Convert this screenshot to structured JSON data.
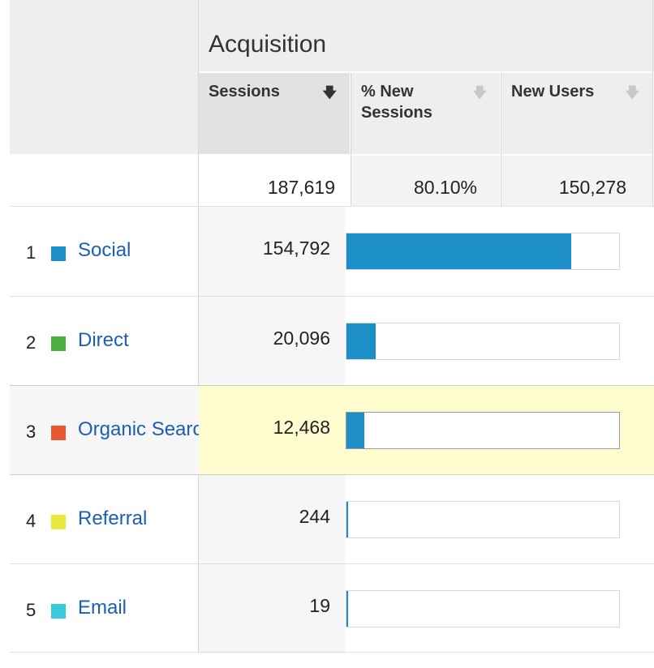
{
  "header": {
    "group_title": "Acquisition",
    "columns": [
      {
        "label": "Sessions",
        "sort_icon": "arrow-down-icon",
        "active": true
      },
      {
        "label": "% New Sessions",
        "sort_icon": "arrow-down-icon",
        "active": false
      },
      {
        "label": "New Users",
        "sort_icon": "arrow-down-icon",
        "active": false
      }
    ]
  },
  "totals": {
    "sessions": "187,619",
    "pct_new_sessions": "80.10%",
    "new_users": "150,278"
  },
  "rows": [
    {
      "index": "1",
      "channel": "Social",
      "color": "#1c8ec8",
      "sessions": "154,792",
      "share": 0.825
    },
    {
      "index": "2",
      "channel": "Direct",
      "color": "#4caf3f",
      "sessions": "20,096",
      "share": 0.107
    },
    {
      "index": "3",
      "channel": "Organic Search",
      "color": "#e8572f",
      "sessions": "12,468",
      "share": 0.066
    },
    {
      "index": "4",
      "channel": "Referral",
      "color": "#e8e83a",
      "sessions": "244",
      "share": 0.0013
    },
    {
      "index": "5",
      "channel": "Email",
      "color": "#3ac8dc",
      "sessions": "19",
      "share": 0.0001
    }
  ],
  "bar_color": "#1c8ec8"
}
